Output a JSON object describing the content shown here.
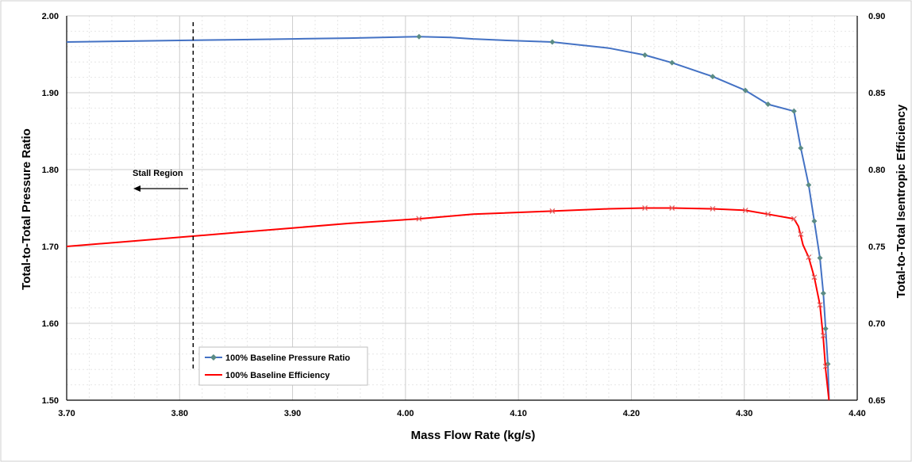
{
  "chart_data": {
    "type": "line",
    "xlabel": "Mass Flow Rate (kg/s)",
    "ylabel": "Total-to-Total Pressure Ratio",
    "y2label": "Total-to-Total Isentropic Efficiency",
    "xlim": [
      3.7,
      4.4
    ],
    "ylim": [
      1.5,
      2.0
    ],
    "y2lim": [
      0.65,
      0.9
    ],
    "x_ticks": [
      "3.70",
      "3.80",
      "3.90",
      "4.00",
      "4.10",
      "4.20",
      "4.30",
      "4.40"
    ],
    "y_ticks": [
      "1.50",
      "1.60",
      "1.70",
      "1.80",
      "1.90",
      "2.00"
    ],
    "y2_ticks": [
      "0.65",
      "0.70",
      "0.75",
      "0.80",
      "0.85",
      "0.90"
    ],
    "grid": true,
    "legend_position": "bottom-left",
    "series": [
      {
        "name": "100% Baseline Pressure Ratio",
        "axis": "left",
        "color": "#4472C4",
        "marker_color": "#5B8C85",
        "marker": "diamond",
        "points": [
          [
            3.7,
            1.966
          ],
          [
            3.75,
            1.967
          ],
          [
            3.8,
            1.968
          ],
          [
            3.85,
            1.969
          ],
          [
            3.9,
            1.97
          ],
          [
            3.95,
            1.971
          ],
          [
            4.012,
            1.973
          ],
          [
            4.04,
            1.972
          ],
          [
            4.06,
            1.97
          ],
          [
            4.09,
            1.968
          ],
          [
            4.13,
            1.966
          ],
          [
            4.18,
            1.958
          ],
          [
            4.212,
            1.949
          ],
          [
            4.236,
            1.939
          ],
          [
            4.272,
            1.921
          ],
          [
            4.301,
            1.903
          ],
          [
            4.321,
            1.885
          ],
          [
            4.344,
            1.876
          ],
          [
            4.35,
            1.828
          ],
          [
            4.357,
            1.78
          ],
          [
            4.362,
            1.733
          ],
          [
            4.367,
            1.685
          ],
          [
            4.37,
            1.639
          ],
          [
            4.372,
            1.593
          ],
          [
            4.374,
            1.547
          ],
          [
            4.375,
            1.5
          ]
        ],
        "marked": [
          [
            4.012,
            1.973
          ],
          [
            4.13,
            1.966
          ],
          [
            4.212,
            1.949
          ],
          [
            4.236,
            1.939
          ],
          [
            4.272,
            1.921
          ],
          [
            4.301,
            1.903
          ],
          [
            4.321,
            1.885
          ],
          [
            4.344,
            1.876
          ],
          [
            4.35,
            1.828
          ],
          [
            4.357,
            1.78
          ],
          [
            4.362,
            1.733
          ],
          [
            4.367,
            1.685
          ],
          [
            4.37,
            1.639
          ],
          [
            4.372,
            1.593
          ],
          [
            4.374,
            1.547
          ]
        ]
      },
      {
        "name": "100% Baseline Efficiency",
        "axis": "right",
        "color": "#FF0000",
        "marker_color": "#E06666",
        "marker": "x",
        "points": [
          [
            3.7,
            0.75
          ],
          [
            3.75,
            0.753
          ],
          [
            3.8,
            0.756
          ],
          [
            3.85,
            0.759
          ],
          [
            3.9,
            0.762
          ],
          [
            3.95,
            0.765
          ],
          [
            4.012,
            0.768
          ],
          [
            4.06,
            0.771
          ],
          [
            4.13,
            0.773
          ],
          [
            4.18,
            0.7745
          ],
          [
            4.212,
            0.775
          ],
          [
            4.236,
            0.775
          ],
          [
            4.272,
            0.7745
          ],
          [
            4.301,
            0.7735
          ],
          [
            4.321,
            0.771
          ],
          [
            4.344,
            0.768
          ],
          [
            4.348,
            0.763
          ],
          [
            4.352,
            0.751
          ],
          [
            4.357,
            0.743
          ],
          [
            4.362,
            0.73
          ],
          [
            4.367,
            0.712
          ],
          [
            4.37,
            0.69
          ],
          [
            4.372,
            0.67
          ],
          [
            4.375,
            0.65
          ]
        ],
        "marked": [
          [
            4.012,
            0.768
          ],
          [
            4.13,
            0.773
          ],
          [
            4.212,
            0.775
          ],
          [
            4.236,
            0.775
          ],
          [
            4.272,
            0.7745
          ],
          [
            4.301,
            0.7735
          ],
          [
            4.321,
            0.771
          ],
          [
            4.344,
            0.768
          ],
          [
            4.35,
            0.758
          ],
          [
            4.357,
            0.743
          ],
          [
            4.362,
            0.73
          ],
          [
            4.367,
            0.712
          ],
          [
            4.37,
            0.692
          ],
          [
            4.372,
            0.672
          ]
        ]
      }
    ],
    "annotations": {
      "stall_line_x": 3.812,
      "stall_text": "Stall Region",
      "arrow_direction": "left"
    }
  }
}
